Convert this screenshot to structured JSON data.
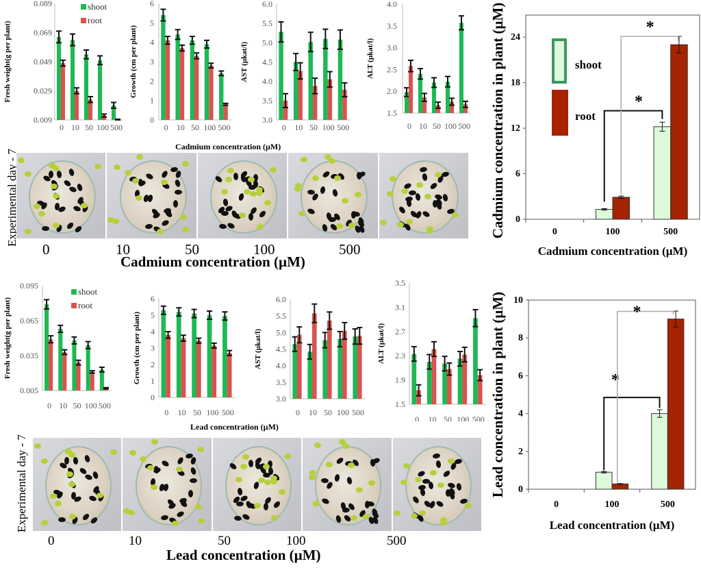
{
  "colors": {
    "shoot": "#1db954",
    "root": "#d9534f",
    "shoot_big": "#ddfadb",
    "shoot_big_border": "#3a9a5e",
    "root_big": "#a52300"
  },
  "legend": {
    "shoot": "shoot",
    "root": "root"
  },
  "cadmium_section": {
    "small_axis_title": "Cadmium concentration (µM)",
    "photo_side_label": "Experimental day - 7",
    "photo_labels": [
      "0",
      "10",
      "50",
      "100",
      "500"
    ],
    "photo_axis_title": "Cadmium concentration (µM)"
  },
  "lead_section": {
    "small_axis_title": "Lead concentration (µM)",
    "photo_side_label": "Experimental day - 7",
    "photo_labels": [
      "0",
      "10",
      "50",
      "100",
      "500"
    ],
    "photo_axis_title": "Lead concentration (µM)"
  },
  "chart_data": [
    {
      "id": "cd-fresh-weight",
      "type": "bar",
      "title": "",
      "categories": [
        "0",
        "10",
        "50",
        "100",
        "500"
      ],
      "xlabel": "",
      "ylabel": "Fresh weight(g per  plant)",
      "ylim": [
        0.009,
        0.089
      ],
      "yticks": [
        "0.009",
        "0.029",
        "0.049",
        "0.069",
        "0.089"
      ],
      "legend": "top-right",
      "grid": false,
      "series": [
        {
          "name": "shoot",
          "values": [
            0.066,
            0.064,
            0.054,
            0.05,
            0.019
          ],
          "errors": [
            0.004,
            0.004,
            0.003,
            0.003,
            0.002
          ]
        },
        {
          "name": "root",
          "values": [
            0.048,
            0.029,
            0.023,
            0.012,
            0.009
          ],
          "errors": [
            0.002,
            0.002,
            0.002,
            0.001,
            0.0005
          ]
        }
      ]
    },
    {
      "id": "cd-growth",
      "type": "bar",
      "title": "",
      "categories": [
        "0",
        "10",
        "50",
        "100",
        "500"
      ],
      "xlabel": "",
      "ylabel": "Growth (cm per plant)",
      "ylim": [
        0,
        6
      ],
      "yticks": [
        "0",
        "1",
        "2",
        "3",
        "4",
        "5",
        "6"
      ],
      "grid": false,
      "series": [
        {
          "name": "shoot",
          "values": [
            5.4,
            4.4,
            4.1,
            3.9,
            2.4
          ],
          "errors": [
            0.3,
            0.25,
            0.2,
            0.2,
            0.12
          ]
        },
        {
          "name": "root",
          "values": [
            4.1,
            3.7,
            3.3,
            2.8,
            0.8
          ],
          "errors": [
            0.2,
            0.15,
            0.15,
            0.12,
            0.05
          ]
        }
      ]
    },
    {
      "id": "cd-ast",
      "type": "bar",
      "title": "",
      "categories": [
        "0",
        "10",
        "50",
        "100",
        "500"
      ],
      "xlabel": "",
      "ylabel": "AST (µkat/l)",
      "ylim": [
        3.0,
        6.0
      ],
      "yticks": [
        "3.0",
        "3.5",
        "4.0",
        "4.5",
        "5.0",
        "5.5",
        "6.0"
      ],
      "grid": false,
      "series": [
        {
          "name": "shoot",
          "values": [
            5.28,
            4.5,
            5.02,
            5.1,
            5.08
          ],
          "errors": [
            0.26,
            0.22,
            0.25,
            0.25,
            0.25
          ]
        },
        {
          "name": "root",
          "values": [
            3.5,
            4.27,
            3.88,
            4.05,
            3.78
          ],
          "errors": [
            0.18,
            0.21,
            0.2,
            0.2,
            0.18
          ]
        }
      ]
    },
    {
      "id": "cd-alt",
      "type": "bar",
      "title": "",
      "categories": [
        "0",
        "10",
        "50",
        "100",
        "500"
      ],
      "xlabel": "",
      "ylabel": "ALT (µkat/l)",
      "ylim": [
        1.5,
        4.0
      ],
      "yticks": [
        "1.5",
        "2.0",
        "2.5",
        "3.0",
        "3.5",
        "4.0"
      ],
      "grid": false,
      "series": [
        {
          "name": "shoot",
          "values": [
            1.98,
            2.4,
            2.2,
            2.22,
            3.57
          ],
          "errors": [
            0.1,
            0.12,
            0.11,
            0.12,
            0.16
          ]
        },
        {
          "name": "root",
          "values": [
            2.58,
            1.86,
            1.68,
            1.76,
            1.7
          ],
          "errors": [
            0.13,
            0.09,
            0.07,
            0.08,
            0.07
          ]
        }
      ]
    },
    {
      "id": "cd-plant-concentration",
      "type": "bar",
      "title": "",
      "categories": [
        "0",
        "100",
        "500"
      ],
      "xlabel": "Cadmium concentration (µM)",
      "ylabel": "Cadmium concentration in plant (µM)",
      "ylim": [
        0,
        26
      ],
      "yticks": [
        "0",
        "6",
        "12",
        "18",
        "24"
      ],
      "legend": "top-left",
      "grid": false,
      "series": [
        {
          "name": "shoot",
          "values": [
            0,
            1.3,
            12.2
          ],
          "errors": [
            0,
            0.1,
            0.6
          ]
        },
        {
          "name": "root",
          "values": [
            0,
            2.9,
            23.0
          ],
          "errors": [
            0,
            0.15,
            1.1
          ]
        }
      ],
      "annotations": [
        "*",
        "*"
      ]
    },
    {
      "id": "pb-fresh-weight",
      "type": "bar",
      "title": "",
      "categories": [
        "0",
        "10",
        "50",
        "100",
        "500"
      ],
      "xlabel": "",
      "ylabel": "Fresh weight(g per  plant)",
      "ylim": [
        0.005,
        0.095
      ],
      "yticks": [
        "0.005",
        "0.035",
        "0.065",
        "0.095"
      ],
      "legend": "top-right",
      "grid": false,
      "series": [
        {
          "name": "shoot",
          "values": [
            0.079,
            0.058,
            0.048,
            0.044,
            0.023
          ],
          "errors": [
            0.004,
            0.003,
            0.003,
            0.003,
            0.002
          ]
        },
        {
          "name": "root",
          "values": [
            0.049,
            0.038,
            0.029,
            0.021,
            0.007
          ],
          "errors": [
            0.003,
            0.002,
            0.002,
            0.001,
            0.0005
          ]
        }
      ]
    },
    {
      "id": "pb-growth",
      "type": "bar",
      "title": "",
      "categories": [
        "0",
        "10",
        "50",
        "100",
        "500"
      ],
      "xlabel": "",
      "ylabel": "Growth (cm per plant)",
      "ylim": [
        0,
        6
      ],
      "yticks": [
        "0",
        "1",
        "2",
        "3",
        "4",
        "5",
        "6"
      ],
      "grid": false,
      "series": [
        {
          "name": "shoot",
          "values": [
            5.3,
            5.2,
            5.1,
            5.0,
            4.95
          ],
          "errors": [
            0.25,
            0.25,
            0.25,
            0.25,
            0.25
          ]
        },
        {
          "name": "root",
          "values": [
            3.8,
            3.6,
            3.45,
            3.15,
            2.7
          ],
          "errors": [
            0.2,
            0.18,
            0.15,
            0.15,
            0.15
          ]
        }
      ]
    },
    {
      "id": "pb-ast",
      "type": "bar",
      "title": "",
      "categories": [
        "0",
        "10",
        "50",
        "100",
        "500"
      ],
      "xlabel": "Lead concentration (µM)",
      "ylabel": "AST (µkat/l)",
      "ylim": [
        3.0,
        6.0
      ],
      "yticks": [
        "3.0",
        "3.5",
        "4.0",
        "4.5",
        "5.0",
        "5.5",
        "6.0"
      ],
      "grid": false,
      "series": [
        {
          "name": "shoot",
          "values": [
            4.65,
            4.42,
            4.77,
            4.8,
            4.88
          ],
          "errors": [
            0.22,
            0.22,
            0.23,
            0.23,
            0.23
          ]
        },
        {
          "name": "root",
          "values": [
            4.93,
            5.58,
            5.36,
            5.05,
            4.9
          ],
          "errors": [
            0.24,
            0.28,
            0.26,
            0.25,
            0.25
          ]
        }
      ]
    },
    {
      "id": "pb-alt",
      "type": "bar",
      "title": "",
      "categories": [
        "0",
        "10",
        "50",
        "100",
        "500"
      ],
      "xlabel": "",
      "ylabel": "ALT (µkat/l)",
      "ylim": [
        1.5,
        3.5
      ],
      "yticks": [
        "1.5",
        "1.9",
        "2.3",
        "2.7",
        "3.1",
        "3.5"
      ],
      "grid": false,
      "series": [
        {
          "name": "shoot",
          "values": [
            2.33,
            2.2,
            2.17,
            2.25,
            2.92
          ],
          "errors": [
            0.12,
            0.12,
            0.12,
            0.12,
            0.14
          ]
        },
        {
          "name": "root",
          "values": [
            1.73,
            2.41,
            2.08,
            2.32,
            1.98
          ],
          "errors": [
            0.09,
            0.12,
            0.1,
            0.12,
            0.09
          ]
        }
      ]
    },
    {
      "id": "pb-plant-concentration",
      "type": "bar",
      "title": "",
      "categories": [
        "0",
        "100",
        "500"
      ],
      "xlabel": "Lead concentration (µM)",
      "ylabel": "Lead concentration in plant (µM)",
      "ylim": [
        0,
        10
      ],
      "yticks": [
        "0",
        "2",
        "4",
        "6",
        "8",
        "10"
      ],
      "grid": false,
      "series": [
        {
          "name": "shoot",
          "values": [
            0,
            0.9,
            4.0
          ],
          "errors": [
            0,
            0.04,
            0.2
          ]
        },
        {
          "name": "root",
          "values": [
            0,
            0.28,
            9.0
          ],
          "errors": [
            0,
            0.02,
            0.42
          ]
        }
      ],
      "annotations": [
        "*",
        "*"
      ]
    }
  ]
}
